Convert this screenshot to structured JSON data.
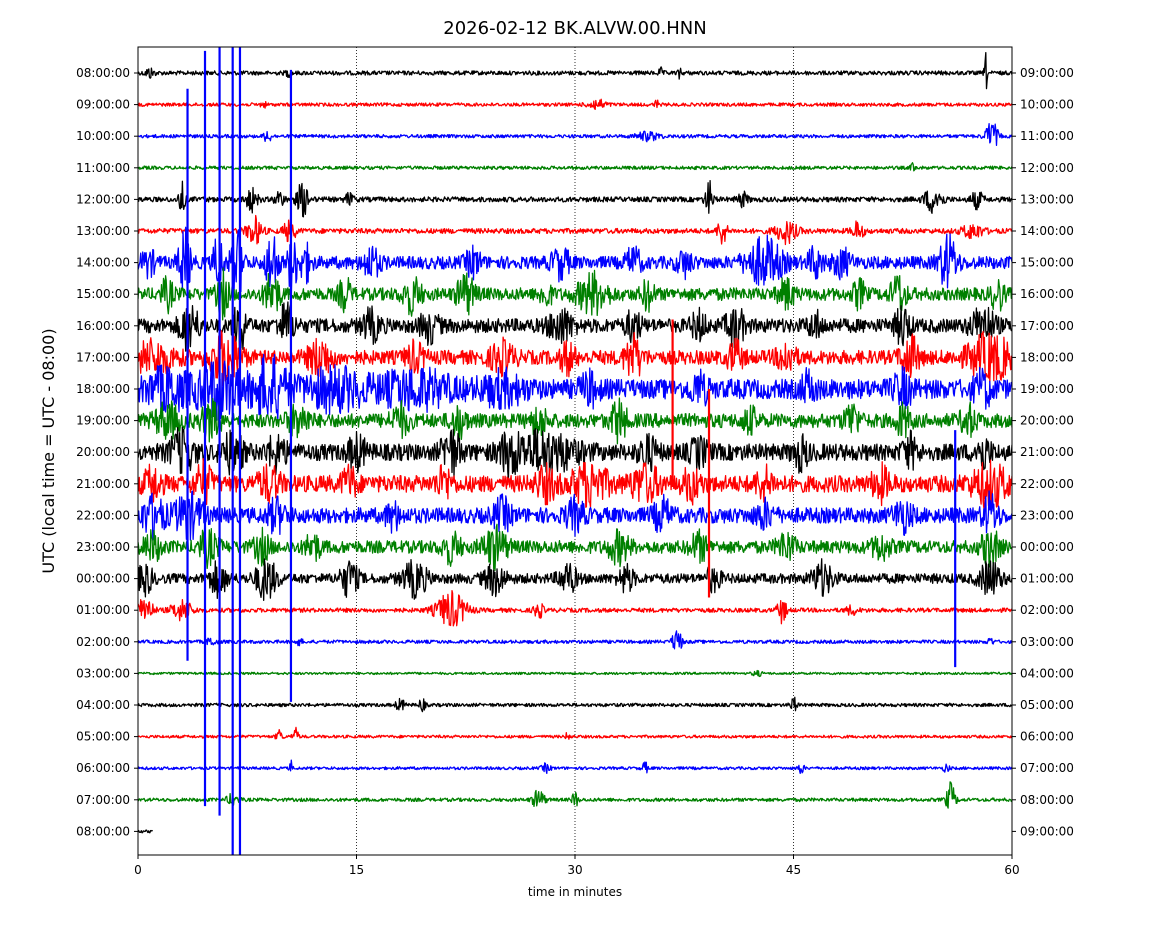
{
  "chart_data": {
    "type": "line",
    "title": "2026-02-12 BK.ALVW.00.HNN",
    "xlabel": "time in minutes",
    "ylabel": "UTC (local time = UTC - 08:00)",
    "xlim": [
      0,
      60
    ],
    "x_ticks": [
      "0",
      "15",
      "30",
      "45",
      "60"
    ],
    "x_tick_values": [
      0,
      15,
      30,
      45,
      60
    ],
    "grid": "vertical dotted at x ticks",
    "colors": [
      "#000000",
      "#ff0000",
      "#0000ff",
      "#008000"
    ],
    "rows": [
      {
        "utc": "08:00:00",
        "local": "09:00:00",
        "color": "#000000",
        "activity": 0.15,
        "end_min": 60,
        "bursts": [
          [
            0.8,
            0.3,
            0.35
          ],
          [
            10.3,
            0.2,
            0.2
          ],
          [
            35.9,
            0.15,
            0.3
          ],
          [
            37.2,
            0.1,
            0.5
          ],
          [
            58.2,
            0.1,
            1.4
          ]
        ]
      },
      {
        "utc": "09:00:00",
        "local": "10:00:00",
        "color": "#ff0000",
        "activity": 0.12,
        "end_min": 60,
        "bursts": [
          [
            8.6,
            0.2,
            0.2
          ],
          [
            31.5,
            0.6,
            0.35
          ],
          [
            35.6,
            0.15,
            0.3
          ]
        ]
      },
      {
        "utc": "10:00:00",
        "local": "11:00:00",
        "color": "#0000ff",
        "activity": 0.12,
        "end_min": 60,
        "bursts": [
          [
            8.9,
            0.25,
            0.45
          ],
          [
            35,
            0.8,
            0.3
          ],
          [
            58.6,
            0.4,
            1.1
          ]
        ]
      },
      {
        "utc": "11:00:00",
        "local": "12:00:00",
        "color": "#008000",
        "activity": 0.12,
        "end_min": 60,
        "bursts": [
          [
            53.2,
            0.15,
            0.35
          ]
        ]
      },
      {
        "utc": "12:00:00",
        "local": "13:00:00",
        "color": "#000000",
        "activity": 0.18,
        "end_min": 60,
        "bursts": [
          [
            3,
            0.2,
            1.2
          ],
          [
            7.8,
            0.4,
            0.8
          ],
          [
            9.7,
            0.3,
            0.6
          ],
          [
            11.3,
            0.4,
            1.2
          ],
          [
            14.5,
            0.3,
            0.4
          ],
          [
            39.2,
            0.25,
            1.3
          ],
          [
            41.5,
            0.35,
            0.5
          ],
          [
            54.6,
            0.6,
            0.9
          ],
          [
            57.6,
            0.4,
            0.6
          ]
        ]
      },
      {
        "utc": "13:00:00",
        "local": "14:00:00",
        "color": "#ff0000",
        "activity": 0.18,
        "end_min": 60,
        "bursts": [
          [
            8,
            0.5,
            1
          ],
          [
            10.4,
            0.4,
            0.8
          ],
          [
            40.1,
            0.3,
            1
          ],
          [
            44.5,
            0.7,
            0.8
          ],
          [
            49.4,
            0.4,
            0.6
          ],
          [
            57.3,
            0.7,
            0.5
          ]
        ]
      },
      {
        "utc": "14:00:00",
        "local": "15:00:00",
        "color": "#0000ff",
        "activity": 0.45,
        "end_min": 60,
        "bursts": [
          [
            0.7,
            0.5,
            0.8
          ],
          [
            3.2,
            0.4,
            2.2
          ],
          [
            5.5,
            0.3,
            2.2
          ],
          [
            6.8,
            0.4,
            2.6
          ],
          [
            9.2,
            0.4,
            2.2
          ],
          [
            10.6,
            0.3,
            2.2
          ],
          [
            11.5,
            0.4,
            1.2
          ],
          [
            16,
            0.6,
            1
          ],
          [
            23,
            0.5,
            0.9
          ],
          [
            29,
            0.6,
            1
          ],
          [
            34,
            0.5,
            1
          ],
          [
            37.5,
            0.5,
            0.8
          ],
          [
            43,
            1.2,
            1.6
          ],
          [
            46.5,
            0.5,
            1
          ],
          [
            48.3,
            0.6,
            0.9
          ],
          [
            55.6,
            0.6,
            1.8
          ]
        ]
      },
      {
        "utc": "15:00:00",
        "local": "16:00:00",
        "color": "#008000",
        "activity": 0.45,
        "end_min": 60,
        "bursts": [
          [
            2,
            0.4,
            1
          ],
          [
            5.8,
            0.4,
            1.5
          ],
          [
            9.2,
            0.5,
            1.5
          ],
          [
            14.2,
            0.4,
            1.1
          ],
          [
            18.8,
            0.6,
            1.2
          ],
          [
            22.5,
            0.6,
            1.3
          ],
          [
            28,
            0.4,
            0.8
          ],
          [
            31.2,
            1,
            1.3
          ],
          [
            35,
            0.4,
            1
          ],
          [
            44.5,
            0.5,
            1
          ],
          [
            49.5,
            0.4,
            0.9
          ],
          [
            52.2,
            0.5,
            1.3
          ],
          [
            59,
            0.4,
            1.1
          ]
        ]
      },
      {
        "utc": "16:00:00",
        "local": "17:00:00",
        "color": "#000000",
        "activity": 0.5,
        "end_min": 60,
        "bursts": [
          [
            3.5,
            0.6,
            1.6
          ],
          [
            7,
            0.4,
            1.9
          ],
          [
            10.2,
            0.5,
            1.5
          ],
          [
            16,
            0.6,
            1
          ],
          [
            20,
            0.6,
            1
          ],
          [
            29,
            0.8,
            1.1
          ],
          [
            34,
            0.5,
            1
          ],
          [
            38.5,
            0.5,
            0.9
          ],
          [
            41,
            0.6,
            1.3
          ],
          [
            46.5,
            0.5,
            0.8
          ],
          [
            52.5,
            0.5,
            1.3
          ],
          [
            58,
            0.8,
            1.2
          ]
        ]
      },
      {
        "utc": "17:00:00",
        "local": "18:00:00",
        "color": "#ff0000",
        "activity": 0.5,
        "end_min": 60,
        "bursts": [
          [
            1,
            1.5,
            1
          ],
          [
            6,
            1,
            1.8
          ],
          [
            12.5,
            0.8,
            1.2
          ],
          [
            19,
            0.6,
            0.9
          ],
          [
            25,
            0.8,
            1
          ],
          [
            29.5,
            0.5,
            1
          ],
          [
            34,
            0.6,
            1.4
          ],
          [
            41,
            0.5,
            1
          ],
          [
            44.5,
            0.6,
            1
          ],
          [
            53,
            0.6,
            1.4
          ],
          [
            58.5,
            1.5,
            1.5
          ]
        ]
      },
      {
        "utc": "18:00:00",
        "local": "19:00:00",
        "color": "#0000ff",
        "activity": 0.7,
        "end_min": 60,
        "bursts": [
          [
            2,
            1.5,
            1.2
          ],
          [
            5.5,
            1.4,
            1.8
          ],
          [
            9,
            1.2,
            2
          ],
          [
            13.5,
            2,
            1.2
          ],
          [
            19,
            2.5,
            1.1
          ],
          [
            25,
            1.5,
            0.9
          ],
          [
            31,
            0.6,
            0.9
          ],
          [
            38.5,
            0.6,
            0.9
          ],
          [
            46,
            0.5,
            0.9
          ],
          [
            52.5,
            0.6,
            1
          ],
          [
            58,
            0.6,
            1
          ]
        ]
      },
      {
        "utc": "19:00:00",
        "local": "20:00:00",
        "color": "#008000",
        "activity": 0.5,
        "end_min": 60,
        "bursts": [
          [
            2,
            0.8,
            1.1
          ],
          [
            5,
            0.7,
            1.2
          ],
          [
            11,
            0.7,
            1
          ],
          [
            18,
            0.6,
            1
          ],
          [
            22,
            0.5,
            1.1
          ],
          [
            27.5,
            0.6,
            0.9
          ],
          [
            33,
            0.5,
            1.4
          ],
          [
            42,
            0.5,
            0.8
          ],
          [
            49,
            0.5,
            1.1
          ],
          [
            52.5,
            0.5,
            1
          ],
          [
            57,
            0.5,
            1
          ]
        ]
      },
      {
        "utc": "20:00:00",
        "local": "21:00:00",
        "color": "#000000",
        "activity": 0.6,
        "end_min": 60,
        "bursts": [
          [
            3,
            0.8,
            1.3
          ],
          [
            6.5,
            0.7,
            1.3
          ],
          [
            9.5,
            0.6,
            1.1
          ],
          [
            15,
            0.6,
            1
          ],
          [
            21.5,
            0.6,
            1.5
          ],
          [
            25.5,
            0.7,
            1.2
          ],
          [
            28,
            2,
            1.3
          ],
          [
            35,
            0.6,
            1
          ],
          [
            38.5,
            0.6,
            0.8
          ],
          [
            45.5,
            0.5,
            1
          ],
          [
            53,
            0.5,
            1
          ],
          [
            58,
            0.5,
            1
          ]
        ]
      },
      {
        "utc": "21:00:00",
        "local": "22:00:00",
        "color": "#ff0000",
        "activity": 0.6,
        "end_min": 60,
        "bursts": [
          [
            1,
            0.6,
            1
          ],
          [
            4.5,
            0.6,
            1.2
          ],
          [
            9,
            0.7,
            1
          ],
          [
            14.5,
            0.5,
            1
          ],
          [
            21,
            0.5,
            1
          ],
          [
            28,
            0.7,
            1
          ],
          [
            31,
            1.2,
            1.3
          ],
          [
            34.8,
            1,
            1.1
          ],
          [
            38,
            0.6,
            1
          ],
          [
            43,
            0.6,
            0.9
          ],
          [
            51,
            0.6,
            1
          ],
          [
            58.5,
            1.2,
            1.3
          ]
        ]
      },
      {
        "utc": "22:00:00",
        "local": "23:00:00",
        "color": "#0000ff",
        "activity": 0.55,
        "end_min": 60,
        "bursts": [
          [
            1,
            0.8,
            1.2
          ],
          [
            3.5,
            1,
            1.3
          ],
          [
            9.5,
            0.6,
            1
          ],
          [
            17.5,
            0.5,
            0.8
          ],
          [
            25,
            0.6,
            1
          ],
          [
            30,
            0.6,
            1
          ],
          [
            36,
            0.6,
            1
          ],
          [
            43,
            0.6,
            0.8
          ],
          [
            52.5,
            0.6,
            1
          ],
          [
            58.5,
            0.5,
            1.3
          ]
        ]
      },
      {
        "utc": "23:00:00",
        "local": "00:00:00",
        "color": "#008000",
        "activity": 0.45,
        "end_min": 60,
        "bursts": [
          [
            1,
            0.6,
            0.9
          ],
          [
            4.8,
            0.6,
            1.1
          ],
          [
            8.5,
            0.5,
            1
          ],
          [
            12,
            0.5,
            0.9
          ],
          [
            21.5,
            0.6,
            1
          ],
          [
            24.5,
            0.8,
            1.3
          ],
          [
            33,
            0.7,
            1
          ],
          [
            38.5,
            0.6,
            0.9
          ],
          [
            44.5,
            0.6,
            0.9
          ],
          [
            51,
            0.6,
            0.8
          ],
          [
            58.5,
            0.6,
            1.2
          ]
        ]
      },
      {
        "utc": "00:00:00",
        "local": "01:00:00",
        "color": "#000000",
        "activity": 0.35,
        "end_min": 60,
        "bursts": [
          [
            0.5,
            0.5,
            1
          ],
          [
            5.5,
            0.6,
            1.1
          ],
          [
            8.8,
            0.7,
            1.4
          ],
          [
            14.5,
            0.6,
            1.2
          ],
          [
            19,
            0.8,
            1.2
          ],
          [
            24.5,
            0.7,
            1
          ],
          [
            29.5,
            0.6,
            1
          ],
          [
            33.5,
            0.5,
            0.9
          ],
          [
            39.5,
            0.5,
            0.8
          ],
          [
            47,
            0.7,
            1.1
          ],
          [
            58.5,
            0.7,
            1.2
          ]
        ]
      },
      {
        "utc": "01:00:00",
        "local": "02:00:00",
        "color": "#ff0000",
        "activity": 0.15,
        "end_min": 60,
        "bursts": [
          [
            0.5,
            0.5,
            1
          ],
          [
            3,
            0.7,
            0.7
          ],
          [
            21.5,
            1,
            1.3
          ],
          [
            27.5,
            0.3,
            0.6
          ],
          [
            44.2,
            0.3,
            0.9
          ],
          [
            49,
            0.4,
            0.3
          ]
        ]
      },
      {
        "utc": "02:00:00",
        "local": "03:00:00",
        "color": "#0000ff",
        "activity": 0.12,
        "end_min": 60,
        "bursts": [
          [
            5,
            0.3,
            0.3
          ],
          [
            11,
            0.3,
            0.2
          ],
          [
            37,
            0.3,
            1
          ],
          [
            58.5,
            0.2,
            0.3
          ]
        ]
      },
      {
        "utc": "03:00:00",
        "local": "04:00:00",
        "color": "#008000",
        "activity": 0.08,
        "end_min": 60,
        "bursts": [
          [
            42.5,
            0.3,
            0.2
          ]
        ]
      },
      {
        "utc": "04:00:00",
        "local": "05:00:00",
        "color": "#000000",
        "activity": 0.12,
        "end_min": 60,
        "bursts": [
          [
            18,
            0.3,
            0.4
          ],
          [
            19.5,
            0.2,
            0.5
          ],
          [
            45,
            0.2,
            0.6
          ]
        ]
      },
      {
        "utc": "05:00:00",
        "local": "06:00:00",
        "color": "#ff0000",
        "activity": 0.1,
        "end_min": 60,
        "bursts": [
          [
            9.7,
            0.2,
            0.5
          ],
          [
            10.8,
            0.2,
            0.6
          ],
          [
            29.5,
            0.15,
            0.3
          ]
        ]
      },
      {
        "utc": "06:00:00",
        "local": "07:00:00",
        "color": "#0000ff",
        "activity": 0.1,
        "end_min": 60,
        "bursts": [
          [
            10.5,
            0.1,
            0.5
          ],
          [
            28,
            0.3,
            0.3
          ],
          [
            34.8,
            0.2,
            0.4
          ],
          [
            45.5,
            0.2,
            0.4
          ],
          [
            55.5,
            0.2,
            0.3
          ]
        ]
      },
      {
        "utc": "07:00:00",
        "local": "08:00:00",
        "color": "#008000",
        "activity": 0.12,
        "end_min": 60,
        "bursts": [
          [
            6.5,
            0.4,
            0.4
          ],
          [
            27.5,
            0.4,
            0.7
          ],
          [
            30,
            0.2,
            0.6
          ],
          [
            55.8,
            0.3,
            1.2
          ]
        ]
      },
      {
        "utc": "08:00:00",
        "local": "09:00:00",
        "color": "#000000",
        "activity": 0.1,
        "end_min": 1,
        "bursts": []
      }
    ],
    "spikes": [
      {
        "x_min": 3.4,
        "top_row": 0.5,
        "bottom_row": 18.6,
        "color": "#0000ff"
      },
      {
        "x_min": 4.6,
        "top_row": -0.7,
        "bottom_row": 23.2,
        "color": "#0000ff"
      },
      {
        "x_min": 5.6,
        "top_row": -0.9,
        "bottom_row": 23.5,
        "color": "#0000ff"
      },
      {
        "x_min": 6.5,
        "top_row": -0.9,
        "bottom_row": 25.4,
        "color": "#0000ff"
      },
      {
        "x_min": 7.0,
        "top_row": -0.9,
        "bottom_row": 25.4,
        "color": "#0000ff"
      },
      {
        "x_min": 10.5,
        "top_row": -0.1,
        "bottom_row": 19.9,
        "color": "#0000ff"
      },
      {
        "x_min": 36.7,
        "top_row": 7.8,
        "bottom_row": 13.1,
        "color": "#ff0000"
      },
      {
        "x_min": 39.2,
        "top_row": 10.0,
        "bottom_row": 16.6,
        "color": "#ff0000"
      },
      {
        "x_min": 56.1,
        "top_row": 11.3,
        "bottom_row": 18.8,
        "color": "#0000ff"
      }
    ]
  }
}
